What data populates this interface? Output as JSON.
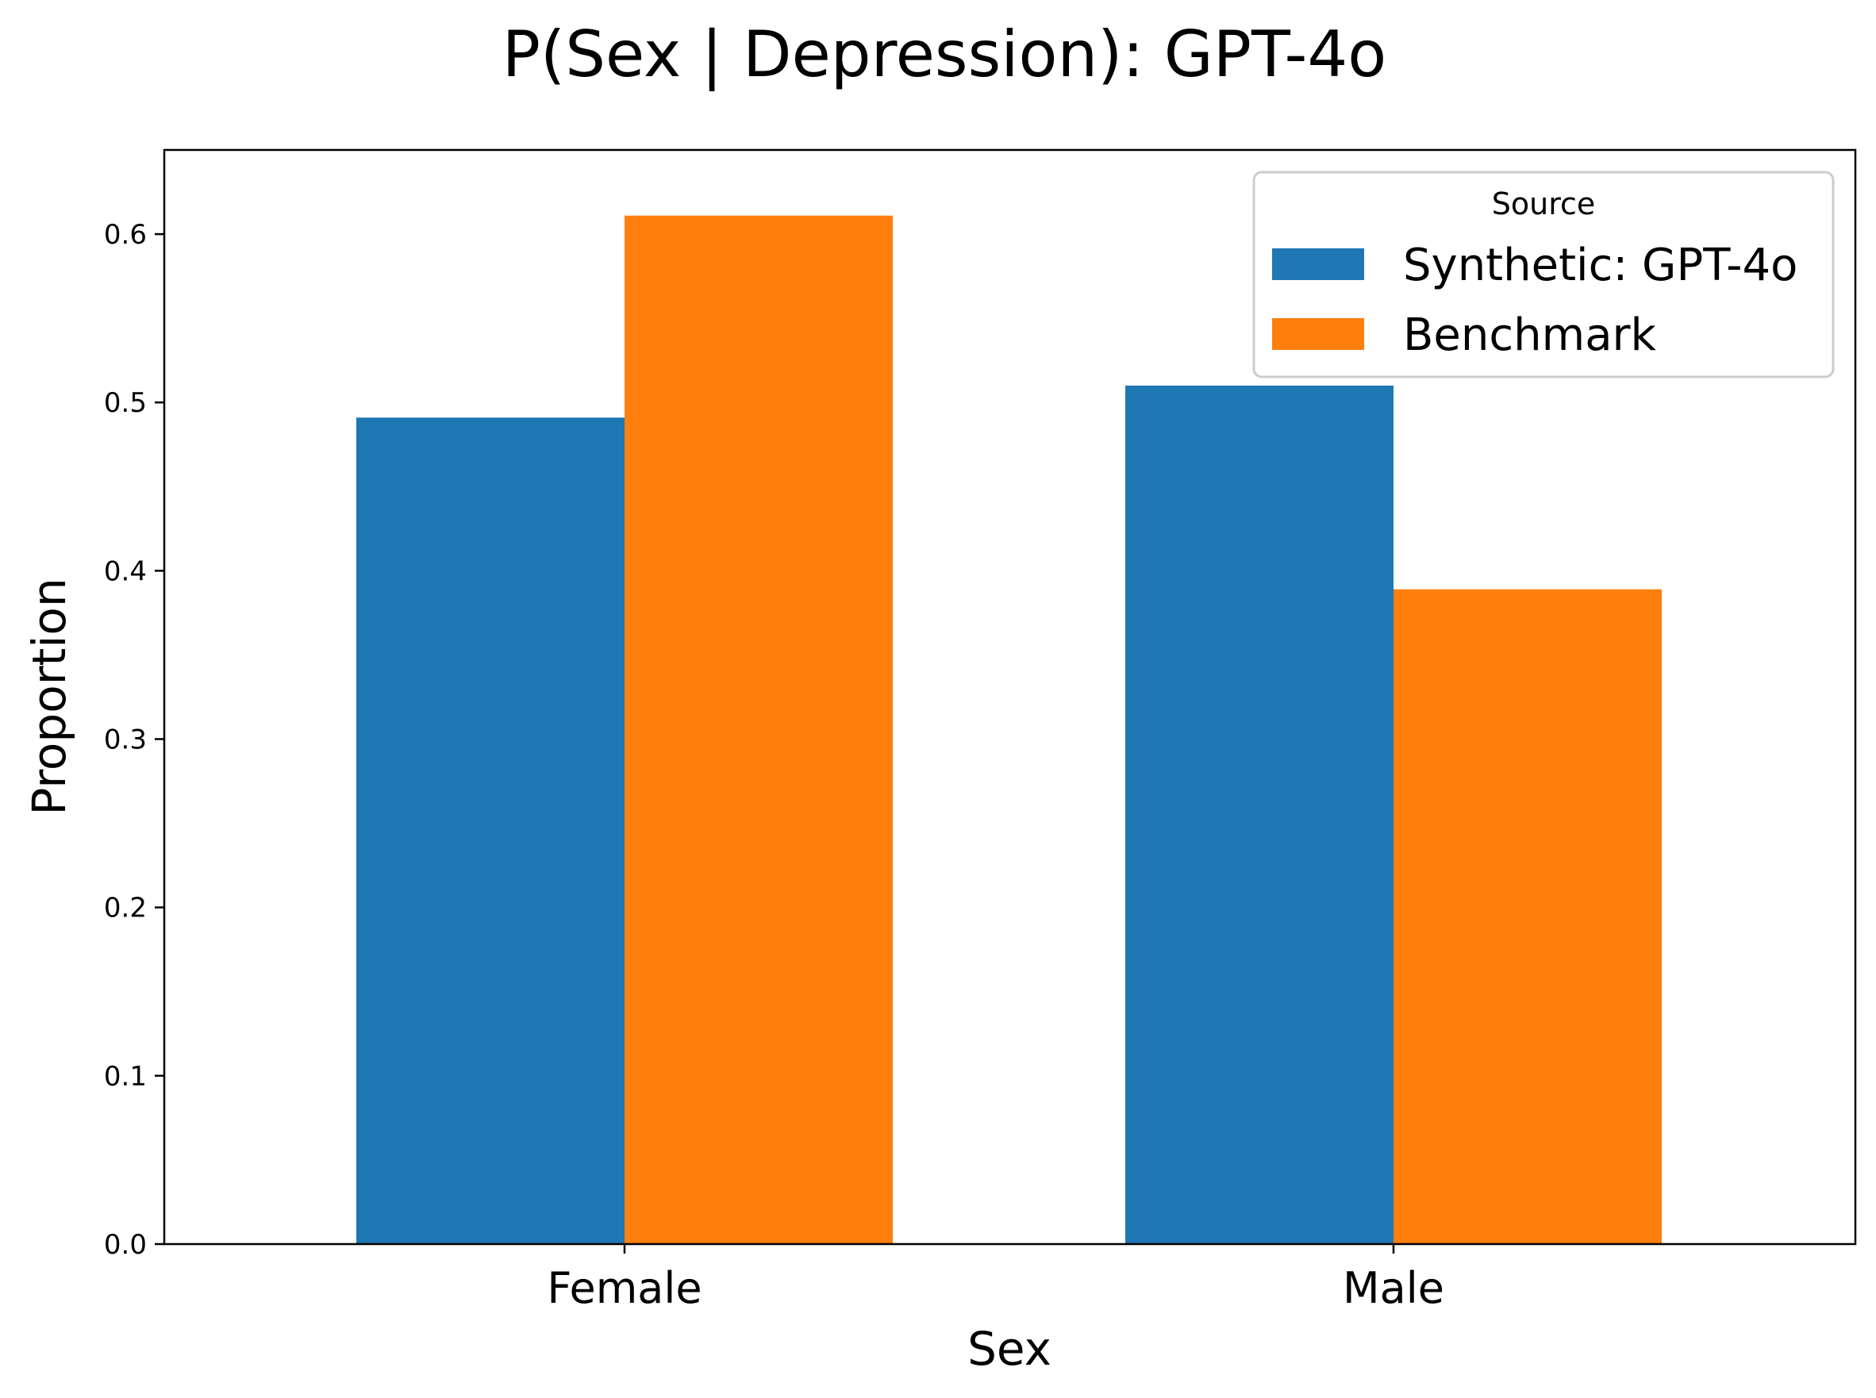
{
  "chart_data": {
    "type": "bar",
    "title": "P(Sex | Depression): GPT-4o",
    "xlabel": "Sex",
    "ylabel": "Proportion",
    "categories": [
      "Female",
      "Male"
    ],
    "series": [
      {
        "name": "Synthetic: GPT-4o",
        "color": "#1f77b4",
        "values": [
          0.491,
          0.51
        ]
      },
      {
        "name": "Benchmark",
        "color": "#ff7f0e",
        "values": [
          0.611,
          0.389
        ]
      }
    ],
    "ylim": [
      0,
      0.65
    ],
    "yticks": [
      "0.0",
      "0.1",
      "0.2",
      "0.3",
      "0.4",
      "0.5",
      "0.6"
    ],
    "grid": false,
    "legend": {
      "title": "Source",
      "position": "top-right"
    }
  }
}
